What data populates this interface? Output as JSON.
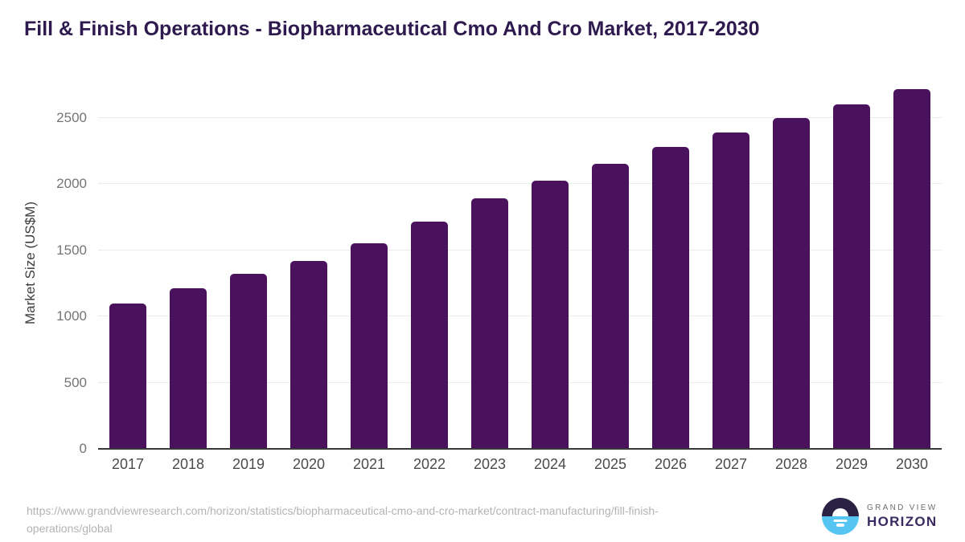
{
  "chart_data": {
    "type": "bar",
    "title": "Fill & Finish Operations - Biopharmaceutical Cmo And Cro Market, 2017-2030",
    "categories": [
      "2017",
      "2018",
      "2019",
      "2020",
      "2021",
      "2022",
      "2023",
      "2024",
      "2025",
      "2026",
      "2027",
      "2028",
      "2029",
      "2030"
    ],
    "values": [
      1100,
      1210,
      1320,
      1420,
      1550,
      1715,
      1890,
      2025,
      2150,
      2280,
      2390,
      2500,
      2600,
      2715
    ],
    "xlabel": "",
    "ylabel": "Market Size (US$M)",
    "ylim": [
      0,
      2800
    ],
    "yticks": [
      0,
      500,
      1000,
      1500,
      2000,
      2500
    ],
    "grid": true,
    "legend": "none",
    "bar_color": "#4a115c"
  },
  "footer": {
    "url_lines": [
      "https://www.grandviewresearch.com/horizon/statistics/biopharmaceutical-cmo-and-cro-market/contract-manufacturing/fill-finish-",
      "operations/global"
    ]
  },
  "logo": {
    "brand_top": "GRAND VIEW",
    "brand_bottom": "HORIZON",
    "icon": "horizon-sun-icon",
    "icon_colors": {
      "dark": "#2b2145",
      "blue": "#56c5f1"
    }
  },
  "colors": {
    "title_text": "#2e1a4e",
    "bar": "#4a115c",
    "gridline": "#ebebeb",
    "axis_line": "#383838",
    "y_tick_text": "#757575",
    "x_tick_text": "#4a4a4a",
    "footer_text": "#b3b3b3"
  }
}
